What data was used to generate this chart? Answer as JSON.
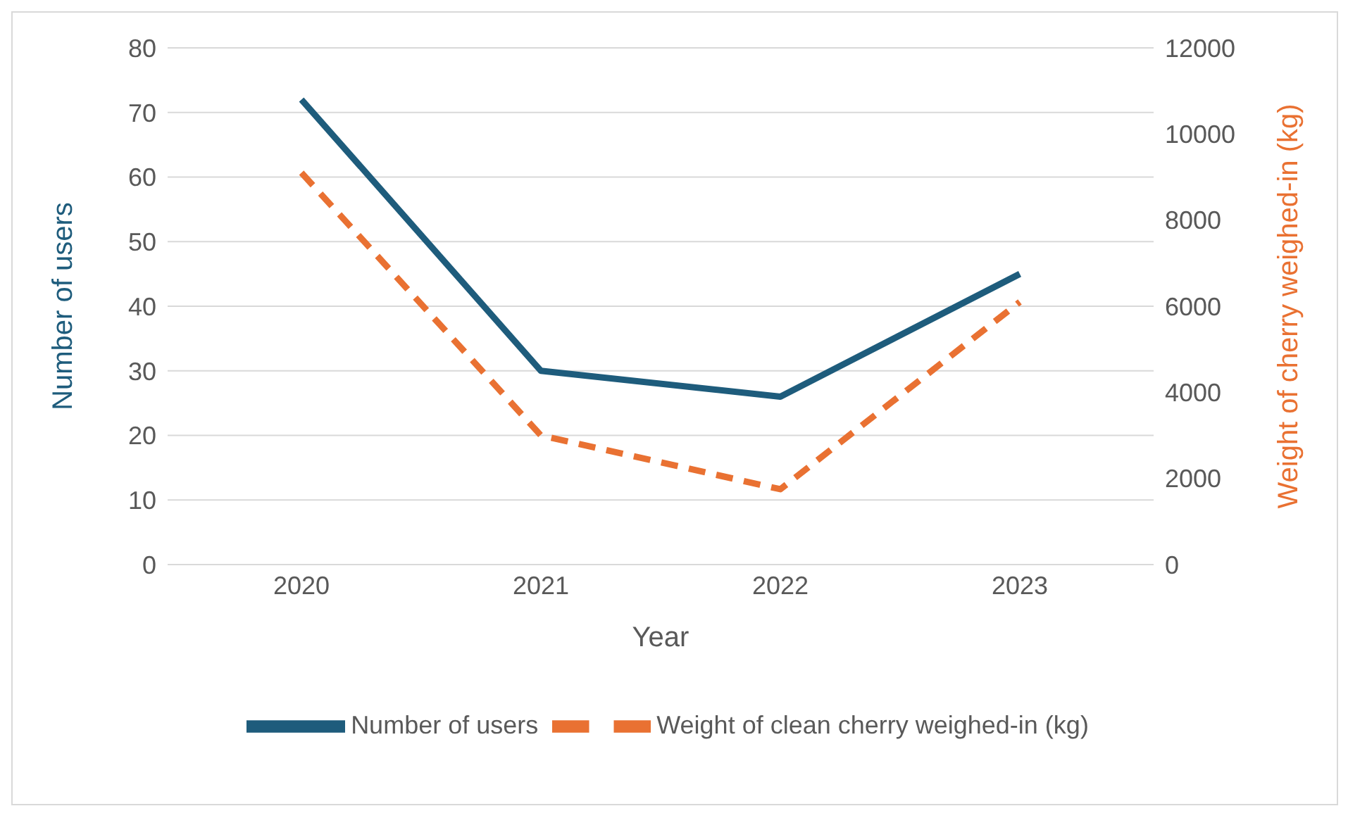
{
  "chart_data": {
    "type": "line",
    "xlabel": "Year",
    "ylabel": "Number of users",
    "y2label": "Weight of cherry weighed-in (kg)",
    "categories": [
      "2020",
      "2021",
      "2022",
      "2023"
    ],
    "series": [
      {
        "name": "Number of users",
        "color": "#1e5c7c",
        "values": [
          72,
          30,
          26,
          45
        ],
        "line_style": "solid"
      },
      {
        "name": "Weight of clean cherry weighed-in (kg)",
        "color": "#e97132",
        "values": [
          9100,
          3000,
          1750,
          6100
        ],
        "axis": "y2",
        "line_style": "dashed"
      }
    ],
    "ylim": [
      0,
      80
    ],
    "yticks": [
      0,
      10,
      20,
      30,
      40,
      50,
      60,
      70,
      80
    ],
    "y2lim": [
      0,
      12000
    ],
    "y2ticks": [
      0,
      2000,
      4000,
      6000,
      8000,
      10000,
      12000
    ],
    "grid": "y",
    "legend": "bottom",
    "marker": "none"
  }
}
